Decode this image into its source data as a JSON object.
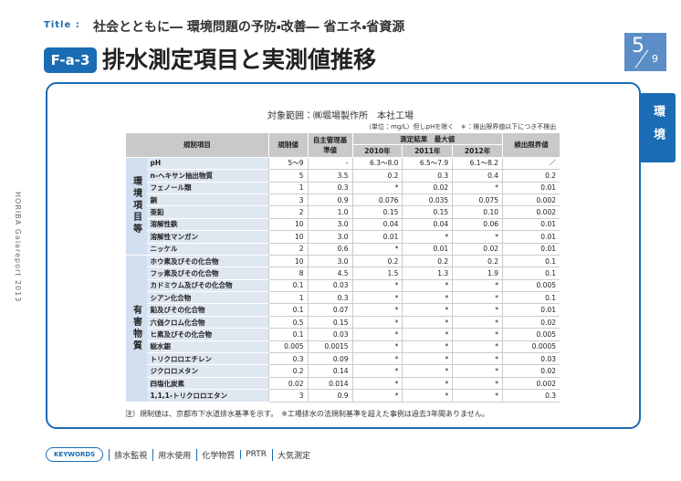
{
  "header": {
    "title_label": "Title :",
    "title": "社会とともに― 環境問題の予防・改善― 省エネ・省資源",
    "badge": "F-a-3",
    "heading": "排水測定項目と実測値推移",
    "page": "5",
    "page_total": "9",
    "side_tab": "環境",
    "side_text": "HORIBA Gaiareport 2013"
  },
  "scope": "対象範囲：㈱堀場製作所　本社工場",
  "unit_note": "（単位：mg/L）但しpHを除く　＊：検出限界値以下につき不検出",
  "table": {
    "columns": {
      "item": "規制項目",
      "regulation": "規制値",
      "self": "自主管理基準値",
      "measured": "測定結果　最大値",
      "years": [
        "2010年",
        "2011年",
        "2012年"
      ],
      "limit": "検出限界値"
    },
    "groups": [
      {
        "label": "環境項目等",
        "rows": [
          [
            "pH",
            "5～9",
            "-",
            "6.3～8.0",
            "6.5～7.9",
            "6.1～8.2",
            "／"
          ],
          [
            "n-ヘキサン抽出物質",
            "5",
            "3.5",
            "0.2",
            "0.3",
            "0.4",
            "0.2"
          ],
          [
            "フェノール類",
            "1",
            "0.3",
            "*",
            "0.02",
            "*",
            "0.01"
          ],
          [
            "銅",
            "3",
            "0.9",
            "0.076",
            "0.035",
            "0.075",
            "0.002"
          ],
          [
            "亜鉛",
            "2",
            "1.0",
            "0.15",
            "0.15",
            "0.10",
            "0.002"
          ],
          [
            "溶解性鉄",
            "10",
            "3.0",
            "0.04",
            "0.04",
            "0.06",
            "0.01"
          ],
          [
            "溶解性マンガン",
            "10",
            "3.0",
            "0.01",
            "*",
            "*",
            "0.01"
          ],
          [
            "ニッケル",
            "2",
            "0.6",
            "*",
            "0.01",
            "0.02",
            "0.01"
          ]
        ]
      },
      {
        "label": "有害物質",
        "rows": [
          [
            "ホウ素及びその化合物",
            "10",
            "3.0",
            "0.2",
            "0.2",
            "0.2",
            "0.1"
          ],
          [
            "フッ素及びその化合物",
            "8",
            "4.5",
            "1.5",
            "1.3",
            "1.9",
            "0.1"
          ],
          [
            "カドミウム及びその化合物",
            "0.1",
            "0.03",
            "*",
            "*",
            "*",
            "0.005"
          ],
          [
            "シアン化合物",
            "1",
            "0.3",
            "*",
            "*",
            "*",
            "0.1"
          ],
          [
            "鉛及びその化合物",
            "0.1",
            "0.07",
            "*",
            "*",
            "*",
            "0.01"
          ],
          [
            "六価クロム化合物",
            "0.5",
            "0.15",
            "*",
            "*",
            "*",
            "0.02"
          ],
          [
            "ヒ素及びその化合物",
            "0.1",
            "0.03",
            "*",
            "*",
            "*",
            "0.005"
          ],
          [
            "総水銀",
            "0.005",
            "0.0015",
            "*",
            "*",
            "*",
            "0.0005"
          ],
          [
            "トリクロロエチレン",
            "0.3",
            "0.09",
            "*",
            "*",
            "*",
            "0.03"
          ],
          [
            "ジクロロメタン",
            "0.2",
            "0.14",
            "*",
            "*",
            "*",
            "0.02"
          ],
          [
            "四塩化炭素",
            "0.02",
            "0.014",
            "*",
            "*",
            "*",
            "0.002"
          ],
          [
            "1,1,1-トリクロロエタン",
            "3",
            "0.9",
            "*",
            "*",
            "*",
            "0.3"
          ]
        ]
      }
    ]
  },
  "footnote": "注）規制値は、京都市下水道排水基準を示す。　※工場排水の法規制基準を超えた事例は過去3年間ありません。",
  "keywords": {
    "label": "KEYWORDS",
    "items": [
      "排水監視",
      "用水使用",
      "化学物質",
      "PRTR",
      "大気測定"
    ]
  }
}
